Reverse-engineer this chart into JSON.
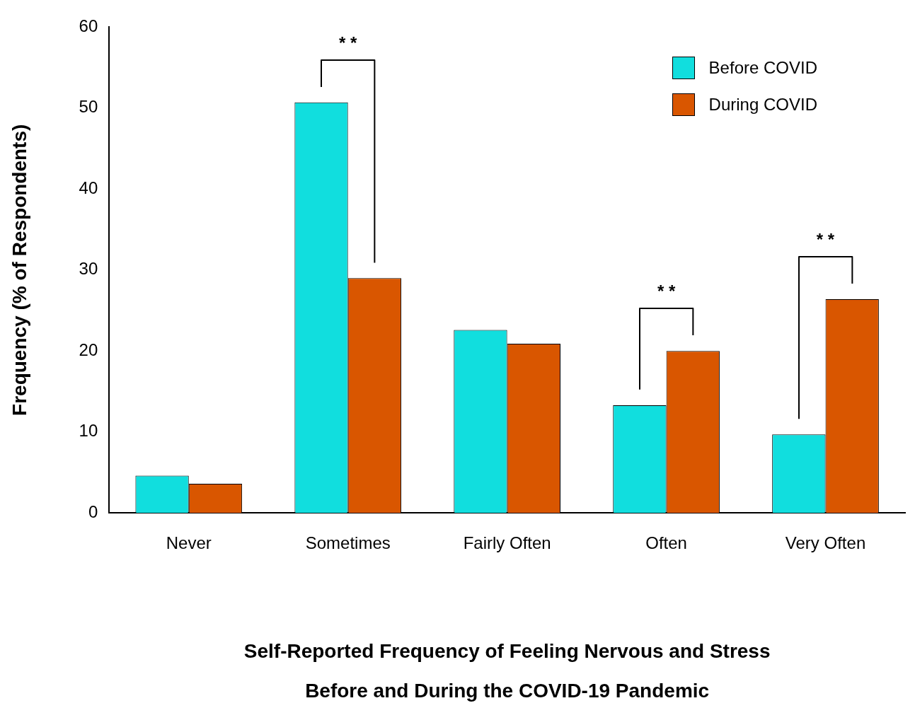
{
  "chart_data": {
    "type": "bar",
    "xlabel": "Self-Reported Frequency of Feeling Nervous and Stress\nBefore and During the COVID-19 Pandemic",
    "ylabel": "Frequency (% of Respondents)",
    "categories": [
      "Never",
      "Sometimes",
      "Fairly Often",
      "Often",
      "Very Often"
    ],
    "series": [
      {
        "name": "Before COVID",
        "color": "#11dede",
        "values": [
          4.6,
          50.7,
          22.6,
          13.3,
          9.7
        ]
      },
      {
        "name": "During COVID",
        "color": "#d95600",
        "values": [
          3.6,
          29.0,
          20.9,
          20.0,
          26.4
        ]
      }
    ],
    "ylim": [
      0,
      60
    ],
    "yticks": [
      0,
      10,
      20,
      30,
      40,
      50,
      60
    ],
    "grid": false,
    "legend": "top right",
    "annotations": [
      "* *",
      "* *",
      "* *"
    ]
  }
}
